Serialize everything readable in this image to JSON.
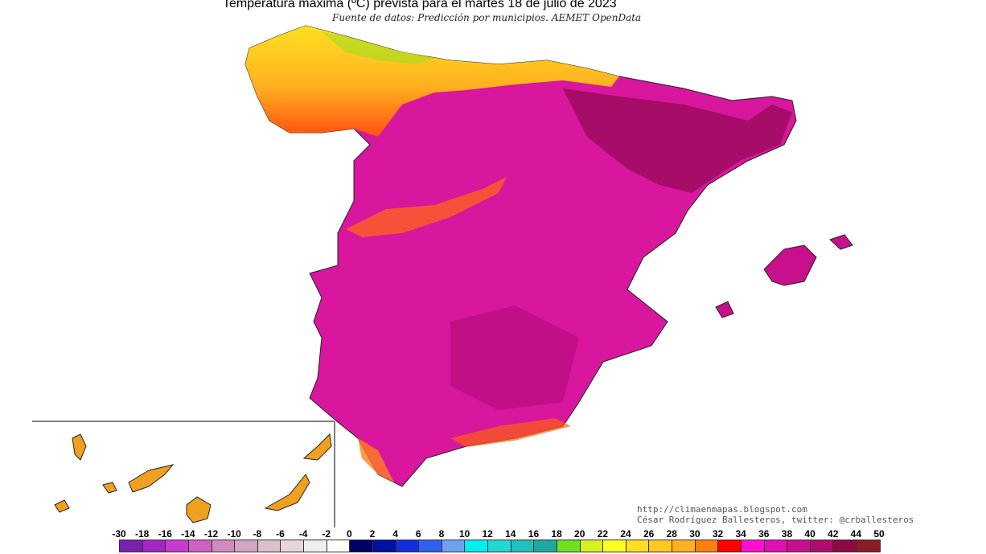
{
  "title": "Temperatura máxima (ºC) prevista para el martes 18 de julio de 2023",
  "subtitle": "Fuente de datos: Predicción por municipios. AEMET OpenData",
  "credits": [
    "http://climaenmapas.blogspot.com",
    "César Rodríguez Ballesteros, twitter: @crballesteros"
  ],
  "legend": {
    "labels": [
      "-30",
      "-18",
      "-16",
      "-14",
      "-12",
      "-10",
      "-8",
      "-6",
      "-4",
      "-2",
      "0",
      "2",
      "4",
      "6",
      "8",
      "10",
      "12",
      "14",
      "16",
      "18",
      "20",
      "22",
      "24",
      "26",
      "28",
      "30",
      "32",
      "34",
      "36",
      "38",
      "40",
      "42",
      "44",
      "50"
    ],
    "colors": [
      "#7b1fae",
      "#a526c4",
      "#c93acf",
      "#cb62c3",
      "#cf8abf",
      "#d4a5c2",
      "#dcbfcc",
      "#e6d6da",
      "#efefef",
      "#fffef8",
      "#000066",
      "#0010a0",
      "#1030e0",
      "#3060f0",
      "#70a0f0",
      "#00f0f0",
      "#20d8d0",
      "#20c0c0",
      "#20a8a0",
      "#70e020",
      "#d8f020",
      "#ffff20",
      "#ffe020",
      "#ffc820",
      "#ffb020",
      "#ff8010",
      "#ff0000",
      "#ff10d0",
      "#e010b0",
      "#c8108c",
      "#b00c70",
      "#900848",
      "#8a1c24"
    ]
  },
  "region": "Spain",
  "inset": "Canary Islands"
}
